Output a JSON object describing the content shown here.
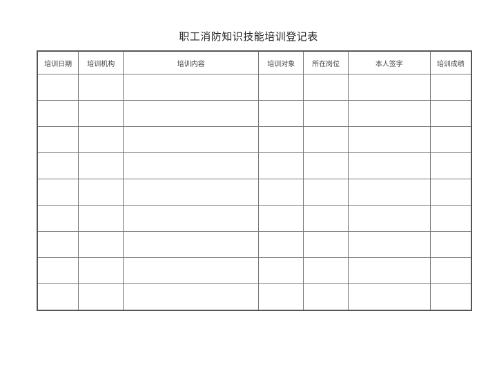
{
  "title": "职工消防知识技能培训登记表",
  "columns": [
    "培训日期",
    "培训机构",
    "培训内容",
    "培训对象",
    "所在岗位",
    "本人签字",
    "培训成绩"
  ],
  "rows": [
    [
      "",
      "",
      "",
      "",
      "",
      "",
      ""
    ],
    [
      "",
      "",
      "",
      "",
      "",
      "",
      ""
    ],
    [
      "",
      "",
      "",
      "",
      "",
      "",
      ""
    ],
    [
      "",
      "",
      "",
      "",
      "",
      "",
      ""
    ],
    [
      "",
      "",
      "",
      "",
      "",
      "",
      ""
    ],
    [
      "",
      "",
      "",
      "",
      "",
      "",
      ""
    ],
    [
      "",
      "",
      "",
      "",
      "",
      "",
      ""
    ],
    [
      "",
      "",
      "",
      "",
      "",
      "",
      ""
    ],
    [
      "",
      "",
      "",
      "",
      "",
      "",
      ""
    ]
  ]
}
